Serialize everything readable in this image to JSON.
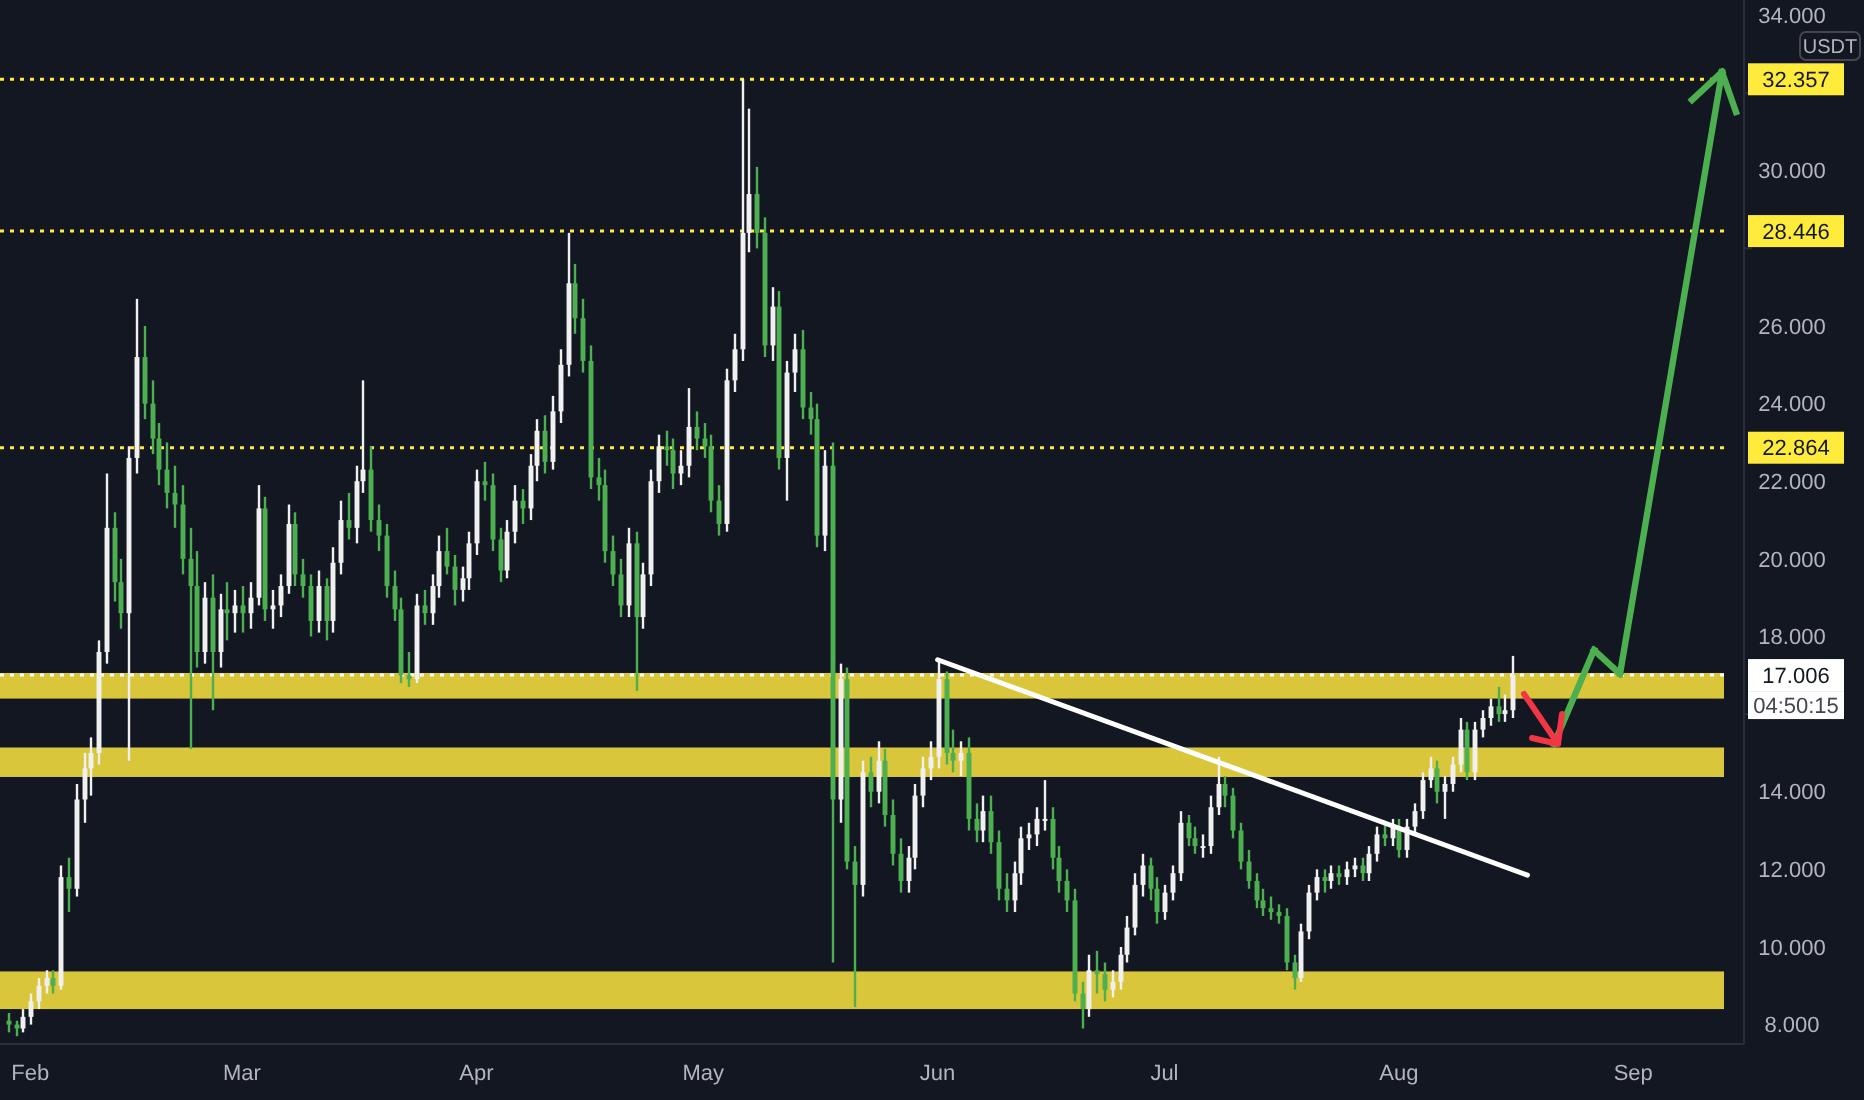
{
  "chart_data": {
    "type": "candlestick",
    "ylabel": "USDT",
    "colors": [
      "#4caf50",
      "#4caf50",
      "#f0f0f0",
      "#f0f0f0",
      "#f0f0f0",
      "#f0f0f0",
      "#4caf50",
      "#f0f0f0",
      "#4caf50",
      "#f0f0f0",
      "#f0f0f0",
      "#f0f0f0",
      "#f0f0f0",
      "#f0f0f0",
      "#4caf50",
      "#4caf50",
      "#f0f0f0",
      "#f0f0f0",
      "#4caf50",
      "#4caf50",
      "#4caf50",
      "#4caf50",
      "#4caf50",
      "#4caf50",
      "#4caf50",
      "#4caf50",
      "#f0f0f0",
      "#4caf50",
      "#f0f0f0",
      "#4caf50",
      "#f0f0f0",
      "#4caf50",
      "#f0f0f0",
      "#f0f0f0",
      "#4caf50",
      "#f0f0f0",
      "#f0f0f0",
      "#f0f0f0",
      "#4caf50",
      "#4caf50",
      "#4caf50",
      "#f0f0f0",
      "#4caf50",
      "#f0f0f0",
      "#f0f0f0",
      "#4caf50",
      "#f0f0f0",
      "#f0f0f0",
      "#4caf50",
      "#4caf50",
      "#4caf50",
      "#4caf50",
      "#4caf50",
      "#4caf50",
      "#f0f0f0",
      "#4caf50",
      "#f0f0f0",
      "#f0f0f0",
      "#4caf50",
      "#4caf50",
      "#f0f0f0",
      "#f0f0f0",
      "#f0f0f0",
      "#4caf50",
      "#4caf50",
      "#4caf50",
      "#f0f0f0",
      "#f0f0f0",
      "#4caf50",
      "#f0f0f0",
      "#f0f0f0",
      "#4caf50",
      "#f0f0f0",
      "#f0f0f0",
      "#f0f0f0",
      "#4caf50",
      "#4caf50",
      "#4caf50",
      "#4caf50",
      "#4caf50",
      "#4caf50",
      "#4caf50",
      "#f0f0f0",
      "#4caf50",
      "#f0f0f0",
      "#f0f0f0",
      "#f0f0f0",
      "#4caf50",
      "#4caf50",
      "#f0f0f0",
      "#f0f0f0",
      "#4caf50",
      "#4caf50",
      "#4caf50",
      "#4caf50",
      "#f0f0f0",
      "#f0f0f0",
      "#f0f0f0",
      "#f0f0f0",
      "#4caf50",
      "#4caf50",
      "#f0f0f0",
      "#4caf50",
      "#f0f0f0",
      "#f0f0f0",
      "#4caf50",
      "#4caf50",
      "#4caf50",
      "#f0f0f0",
      "#4caf50",
      "#f0f0f0",
      "#4caf50",
      "#4caf50",
      "#f0f0f0",
      "#4caf50",
      "#f0f0f0",
      "#4caf50",
      "#4caf50",
      "#4caf50",
      "#f0f0f0",
      "#f0f0f0",
      "#f0f0f0",
      "#f0f0f0",
      "#f0f0f0",
      "#4caf50",
      "#4caf50",
      "#f0f0f0",
      "#4caf50",
      "#4caf50",
      "#f0f0f0",
      "#4caf50",
      "#4caf50",
      "#4caf50",
      "#f0f0f0",
      "#f0f0f0",
      "#f0f0f0",
      "#f0f0f0",
      "#f0f0f0",
      "#4caf50",
      "#4caf50",
      "#4caf50",
      "#4caf50",
      "#4caf50",
      "#f0f0f0",
      "#4caf50",
      "#4caf50",
      "#f0f0f0",
      "#f0f0f0",
      "#f0f0f0",
      "#f0f0f0",
      "#f0f0f0",
      "#4caf50",
      "#4caf50",
      "#f0f0f0",
      "#f0f0f0",
      "#f0f0f0",
      "#4caf50",
      "#4caf50",
      "#f0f0f0",
      "#f0f0f0",
      "#f0f0f0",
      "#4caf50",
      "#4caf50",
      "#4caf50",
      "#4caf50",
      "#4caf50",
      "#4caf50",
      "#4caf50",
      "#4caf50",
      "#4caf50",
      "#4caf50",
      "#f0f0f0",
      "#f0f0f0",
      "#f0f0f0",
      "#4caf50",
      "#f0f0f0",
      "#4caf50",
      "#f0f0f0",
      "#f0f0f0",
      "#4caf50",
      "#f0f0f0",
      "#f0f0f0",
      "#4caf50",
      "#f0f0f0",
      "#4caf50",
      "#f0f0f0",
      "#f0f0f0",
      "#f0f0f0",
      "#f0f0f0",
      "#4caf50",
      "#f0f0f0",
      "#f0f0f0",
      "#f0f0f0",
      "#4caf50",
      "#f0f0f0",
      "#f0f0f0",
      "#f0f0f0",
      "#4caf50",
      "#f0f0f0",
      "#f0f0f0"
    ],
    "x": [
      "--01-29",
      "--01-30",
      "--01-31",
      "--02-01",
      "--02-02",
      "--02-03",
      "--02-04",
      "--02-05",
      "--02-06",
      "--02-07",
      "--02-08",
      "--02-09",
      "--02-10",
      "--02-11",
      "--02-12",
      "--02-13",
      "--02-14",
      "--02-15",
      "--02-16",
      "--02-17",
      "--02-18",
      "--02-19",
      "--02-20",
      "--02-21",
      "--02-22",
      "--02-23",
      "--02-24",
      "--02-25",
      "--02-26",
      "--02-27",
      "--02-28",
      "--03-01",
      "--03-02",
      "--03-03",
      "--03-04",
      "--03-05",
      "--03-06",
      "--03-07",
      "--03-08",
      "--03-09",
      "--03-10",
      "--03-11",
      "--03-12",
      "--03-13",
      "--03-14",
      "--03-15",
      "--03-16",
      "--03-17",
      "--03-18",
      "--03-19",
      "--03-20",
      "--03-21",
      "--03-22",
      "--03-23",
      "--03-24",
      "--03-25",
      "--03-26",
      "--03-27",
      "--03-28",
      "--03-29",
      "--03-30",
      "--03-31",
      "--04-01",
      "--04-02",
      "--04-03",
      "--04-04",
      "--04-05",
      "--04-06",
      "--04-07",
      "--04-08",
      "--04-09",
      "--04-10",
      "--04-11",
      "--04-12",
      "--04-13",
      "--04-14",
      "--04-15",
      "--04-16",
      "--04-17",
      "--04-18",
      "--04-19",
      "--04-20",
      "--04-21",
      "--04-22",
      "--04-23",
      "--04-24",
      "--04-25",
      "--04-26",
      "--04-27",
      "--04-28",
      "--04-29",
      "--04-30",
      "--05-01",
      "--05-02",
      "--05-03",
      "--05-04",
      "--05-05",
      "--05-06",
      "--05-07",
      "--05-08",
      "--05-09",
      "--05-10",
      "--05-11",
      "--05-12",
      "--05-13",
      "--05-14",
      "--05-15",
      "--05-16",
      "--05-17",
      "--05-18",
      "--05-19",
      "--05-20",
      "--05-21",
      "--05-22",
      "--05-23",
      "--05-24",
      "--05-25",
      "--05-26",
      "--05-27",
      "--05-28",
      "--05-29",
      "--05-30",
      "--05-31",
      "--06-01",
      "--06-02",
      "--06-03",
      "--06-04",
      "--06-05",
      "--06-06",
      "--06-07",
      "--06-08",
      "--06-09",
      "--06-10",
      "--06-11",
      "--06-12",
      "--06-13",
      "--06-14",
      "--06-15",
      "--06-16",
      "--06-17",
      "--06-18",
      "--06-19",
      "--06-20",
      "--06-21",
      "--06-22",
      "--06-23",
      "--06-24",
      "--06-25",
      "--06-26",
      "--06-27",
      "--06-28",
      "--06-29",
      "--06-30",
      "--07-01",
      "--07-02",
      "--07-03",
      "--07-04",
      "--07-05",
      "--07-06",
      "--07-07",
      "--07-08",
      "--07-09",
      "--07-10",
      "--07-11",
      "--07-12",
      "--07-13",
      "--07-14",
      "--07-15",
      "--07-16",
      "--07-17",
      "--07-18",
      "--07-19",
      "--07-20",
      "--07-21",
      "--07-22",
      "--07-23",
      "--07-24",
      "--07-25",
      "--07-26",
      "--07-27",
      "--07-28",
      "--07-29",
      "--07-30",
      "--07-31",
      "--08-01",
      "--08-02",
      "--08-03",
      "--08-04",
      "--08-05",
      "--08-06",
      "--08-07",
      "--08-08",
      "--08-09",
      "--08-10",
      "--08-11",
      "--08-12",
      "--08-13",
      "--08-14",
      "--08-15",
      "--08-16"
    ],
    "ohlc": [
      [
        8.1,
        8.3,
        7.8,
        8.0
      ],
      [
        8.0,
        8.1,
        7.7,
        7.9
      ],
      [
        7.9,
        8.4,
        7.8,
        8.2
      ],
      [
        8.2,
        8.8,
        8.0,
        8.6
      ],
      [
        8.6,
        9.2,
        8.4,
        9.0
      ],
      [
        9.0,
        9.4,
        8.8,
        9.2
      ],
      [
        9.2,
        9.4,
        8.8,
        9.0
      ],
      [
        9.0,
        12.1,
        8.9,
        11.8
      ],
      [
        11.8,
        12.3,
        10.9,
        11.5
      ],
      [
        11.5,
        14.2,
        11.3,
        13.8
      ],
      [
        13.8,
        15.0,
        13.2,
        14.6
      ],
      [
        14.6,
        15.4,
        13.9,
        15.0
      ],
      [
        15.0,
        17.9,
        14.7,
        17.6
      ],
      [
        17.6,
        22.2,
        17.3,
        20.8
      ],
      [
        20.8,
        21.2,
        18.9,
        19.4
      ],
      [
        19.4,
        20.0,
        18.2,
        18.6
      ],
      [
        18.6,
        22.9,
        14.8,
        22.6
      ],
      [
        22.6,
        26.7,
        22.2,
        25.2
      ],
      [
        25.2,
        26.0,
        23.6,
        24.0
      ],
      [
        24.0,
        24.6,
        22.7,
        23.1
      ],
      [
        23.1,
        23.5,
        21.9,
        22.3
      ],
      [
        22.3,
        23.0,
        21.3,
        21.7
      ],
      [
        21.7,
        22.4,
        20.8,
        21.4
      ],
      [
        21.4,
        21.9,
        19.6,
        20.0
      ],
      [
        20.0,
        20.8,
        15.1,
        19.3
      ],
      [
        19.3,
        20.2,
        17.2,
        17.6
      ],
      [
        17.6,
        19.4,
        17.3,
        19.0
      ],
      [
        19.0,
        19.6,
        16.1,
        17.6
      ],
      [
        17.6,
        19.1,
        17.2,
        18.7
      ],
      [
        18.7,
        19.4,
        17.9,
        18.6
      ],
      [
        18.6,
        19.2,
        18.1,
        18.8
      ],
      [
        18.8,
        19.3,
        18.1,
        18.6
      ],
      [
        18.6,
        19.4,
        18.2,
        19.0
      ],
      [
        19.0,
        21.9,
        18.8,
        21.3
      ],
      [
        21.3,
        21.6,
        18.4,
        18.7
      ],
      [
        18.7,
        19.2,
        18.2,
        18.8
      ],
      [
        18.8,
        19.6,
        18.5,
        19.3
      ],
      [
        19.3,
        21.4,
        19.1,
        20.9
      ],
      [
        20.9,
        21.2,
        19.3,
        19.6
      ],
      [
        19.6,
        20.0,
        19.0,
        19.3
      ],
      [
        19.3,
        19.6,
        18.0,
        18.4
      ],
      [
        18.4,
        19.7,
        18.1,
        19.3
      ],
      [
        19.3,
        19.5,
        17.9,
        18.4
      ],
      [
        18.4,
        20.3,
        18.1,
        19.9
      ],
      [
        19.9,
        21.5,
        19.6,
        21.0
      ],
      [
        21.0,
        21.7,
        20.5,
        20.8
      ],
      [
        20.8,
        22.4,
        20.4,
        22.0
      ],
      [
        22.0,
        24.6,
        21.7,
        22.3
      ],
      [
        22.3,
        22.9,
        20.7,
        21.0
      ],
      [
        21.0,
        21.4,
        20.2,
        20.6
      ],
      [
        20.6,
        20.9,
        19.0,
        19.3
      ],
      [
        19.3,
        19.7,
        18.4,
        18.7
      ],
      [
        18.7,
        19.0,
        16.8,
        17.0
      ],
      [
        17.0,
        17.6,
        16.7,
        16.9
      ],
      [
        16.9,
        19.1,
        16.8,
        18.8
      ],
      [
        18.8,
        19.2,
        18.3,
        18.6
      ],
      [
        18.6,
        19.6,
        18.3,
        19.3
      ],
      [
        19.3,
        20.6,
        19.0,
        20.2
      ],
      [
        20.2,
        20.8,
        19.6,
        19.8
      ],
      [
        19.8,
        20.1,
        18.8,
        19.2
      ],
      [
        19.2,
        19.8,
        18.9,
        19.5
      ],
      [
        19.5,
        20.7,
        19.2,
        20.4
      ],
      [
        20.4,
        22.3,
        20.1,
        22.0
      ],
      [
        22.0,
        22.5,
        21.5,
        21.9
      ],
      [
        21.9,
        22.2,
        20.2,
        20.5
      ],
      [
        20.5,
        20.8,
        19.4,
        19.7
      ],
      [
        19.7,
        21.0,
        19.5,
        20.7
      ],
      [
        20.7,
        21.9,
        20.4,
        21.5
      ],
      [
        21.5,
        21.8,
        20.9,
        21.3
      ],
      [
        21.3,
        22.7,
        21.0,
        22.4
      ],
      [
        22.4,
        23.6,
        22.0,
        23.3
      ],
      [
        23.3,
        23.7,
        22.2,
        22.5
      ],
      [
        22.5,
        24.2,
        22.3,
        23.8
      ],
      [
        23.8,
        25.4,
        23.5,
        25.0
      ],
      [
        25.0,
        28.4,
        24.7,
        27.1
      ],
      [
        27.1,
        27.6,
        25.8,
        26.2
      ],
      [
        26.2,
        26.7,
        24.8,
        25.1
      ],
      [
        25.1,
        25.5,
        21.8,
        22.1
      ],
      [
        22.1,
        22.6,
        21.5,
        21.9
      ],
      [
        21.9,
        22.3,
        19.9,
        20.2
      ],
      [
        20.2,
        20.6,
        19.3,
        19.6
      ],
      [
        19.6,
        20.0,
        18.5,
        18.8
      ],
      [
        18.8,
        20.8,
        18.5,
        20.4
      ],
      [
        20.4,
        20.7,
        16.6,
        18.5
      ],
      [
        18.5,
        19.9,
        18.2,
        19.6
      ],
      [
        19.6,
        22.3,
        19.3,
        22.0
      ],
      [
        22.0,
        23.2,
        21.7,
        22.9
      ],
      [
        22.9,
        23.3,
        22.4,
        22.8
      ],
      [
        22.8,
        23.1,
        21.8,
        22.2
      ],
      [
        22.2,
        22.8,
        21.9,
        22.4
      ],
      [
        22.4,
        24.4,
        22.1,
        23.4
      ],
      [
        23.4,
        23.8,
        22.8,
        23.1
      ],
      [
        23.1,
        23.5,
        22.6,
        22.9
      ],
      [
        22.9,
        23.2,
        21.2,
        21.5
      ],
      [
        21.5,
        21.9,
        20.6,
        20.9
      ],
      [
        20.9,
        24.9,
        20.7,
        24.6
      ],
      [
        24.6,
        25.8,
        24.3,
        25.4
      ],
      [
        25.4,
        32.36,
        25.1,
        28.4
      ],
      [
        28.4,
        31.6,
        27.9,
        29.4
      ],
      [
        29.4,
        30.1,
        28.0,
        28.4
      ],
      [
        28.4,
        28.8,
        25.2,
        25.5
      ],
      [
        25.5,
        27.0,
        25.1,
        26.5
      ],
      [
        26.5,
        26.9,
        22.3,
        22.6
      ],
      [
        22.6,
        25.1,
        21.5,
        24.8
      ],
      [
        24.8,
        25.8,
        24.3,
        25.4
      ],
      [
        25.4,
        25.9,
        23.6,
        23.9
      ],
      [
        23.9,
        24.3,
        23.2,
        23.6
      ],
      [
        23.6,
        24.0,
        20.3,
        20.6
      ],
      [
        20.6,
        22.8,
        20.2,
        22.4
      ],
      [
        22.4,
        23.0,
        9.6,
        13.8
      ],
      [
        13.8,
        17.3,
        13.2,
        16.9
      ],
      [
        16.9,
        17.2,
        12.0,
        12.2
      ],
      [
        12.2,
        12.6,
        8.45,
        11.6
      ],
      [
        11.6,
        14.8,
        11.3,
        14.5
      ],
      [
        14.5,
        14.9,
        13.6,
        14.0
      ],
      [
        14.0,
        15.3,
        13.7,
        14.8
      ],
      [
        14.8,
        15.1,
        13.1,
        13.4
      ],
      [
        13.4,
        13.8,
        12.1,
        12.4
      ],
      [
        12.4,
        12.8,
        11.4,
        11.7
      ],
      [
        11.7,
        12.6,
        11.4,
        12.3
      ],
      [
        12.3,
        14.2,
        12.0,
        13.9
      ],
      [
        13.9,
        14.9,
        13.6,
        14.6
      ],
      [
        14.6,
        15.3,
        14.3,
        14.9
      ],
      [
        14.9,
        17.4,
        14.6,
        16.9
      ],
      [
        16.9,
        17.1,
        14.7,
        15.0
      ],
      [
        15.0,
        15.6,
        14.5,
        14.8
      ],
      [
        14.8,
        15.3,
        14.4,
        15.0
      ],
      [
        15.0,
        15.4,
        13.0,
        13.3
      ],
      [
        13.3,
        13.7,
        12.7,
        13.0
      ],
      [
        13.0,
        13.9,
        12.7,
        13.5
      ],
      [
        13.5,
        13.9,
        12.4,
        12.7
      ],
      [
        12.7,
        13.0,
        11.2,
        11.5
      ],
      [
        11.5,
        11.9,
        10.9,
        11.2
      ],
      [
        11.2,
        12.2,
        10.9,
        11.9
      ],
      [
        11.9,
        13.1,
        11.6,
        12.8
      ],
      [
        12.8,
        13.2,
        12.5,
        12.9
      ],
      [
        12.9,
        13.6,
        12.6,
        13.3
      ],
      [
        13.3,
        14.3,
        13.0,
        13.3
      ],
      [
        13.3,
        13.6,
        12.0,
        12.3
      ],
      [
        12.3,
        12.6,
        11.4,
        11.7
      ],
      [
        11.7,
        12.0,
        10.9,
        11.2
      ],
      [
        11.2,
        11.5,
        8.6,
        8.8
      ],
      [
        8.8,
        9.1,
        7.9,
        8.4
      ],
      [
        8.4,
        9.8,
        8.2,
        9.4
      ],
      [
        9.4,
        9.9,
        8.8,
        9.3
      ],
      [
        9.3,
        9.6,
        8.6,
        8.9
      ],
      [
        8.9,
        9.4,
        8.7,
        9.1
      ],
      [
        9.1,
        10.0,
        8.9,
        9.8
      ],
      [
        9.8,
        10.8,
        9.6,
        10.5
      ],
      [
        10.5,
        11.9,
        10.3,
        11.6
      ],
      [
        11.6,
        12.4,
        11.3,
        12.1
      ],
      [
        12.1,
        12.3,
        11.2,
        11.5
      ],
      [
        11.5,
        11.8,
        10.6,
        10.9
      ],
      [
        10.9,
        11.6,
        10.7,
        11.4
      ],
      [
        11.4,
        12.1,
        11.2,
        11.9
      ],
      [
        11.9,
        13.5,
        11.7,
        13.2
      ],
      [
        13.2,
        13.4,
        12.6,
        12.8
      ],
      [
        12.8,
        13.1,
        12.4,
        12.6
      ],
      [
        12.6,
        12.9,
        12.3,
        12.6
      ],
      [
        12.6,
        13.9,
        12.4,
        13.6
      ],
      [
        13.6,
        14.9,
        13.4,
        14.2
      ],
      [
        14.2,
        14.4,
        13.6,
        13.9
      ],
      [
        13.9,
        14.1,
        12.8,
        13.0
      ],
      [
        13.0,
        13.2,
        12.0,
        12.2
      ],
      [
        12.2,
        12.5,
        11.5,
        11.7
      ],
      [
        11.7,
        11.9,
        11.0,
        11.2
      ],
      [
        11.2,
        11.5,
        10.8,
        11.0
      ],
      [
        11.0,
        11.3,
        10.7,
        10.9
      ],
      [
        10.9,
        11.1,
        10.6,
        10.8
      ],
      [
        10.8,
        11.0,
        9.4,
        9.6
      ],
      [
        9.6,
        9.8,
        8.9,
        9.2
      ],
      [
        9.2,
        10.6,
        9.1,
        10.4
      ],
      [
        10.4,
        11.6,
        10.2,
        11.4
      ],
      [
        11.4,
        12.0,
        11.2,
        11.8
      ],
      [
        11.8,
        12.0,
        11.4,
        11.7
      ],
      [
        11.7,
        12.1,
        11.5,
        11.9
      ],
      [
        11.9,
        12.1,
        11.6,
        11.8
      ],
      [
        11.8,
        12.2,
        11.6,
        12.0
      ],
      [
        12.0,
        12.3,
        11.8,
        12.1
      ],
      [
        12.1,
        12.3,
        11.7,
        11.9
      ],
      [
        11.9,
        12.6,
        11.7,
        12.4
      ],
      [
        12.4,
        13.1,
        12.2,
        12.9
      ],
      [
        12.9,
        13.2,
        12.6,
        12.8
      ],
      [
        12.8,
        13.3,
        12.6,
        13.1
      ],
      [
        13.1,
        13.3,
        12.3,
        12.5
      ],
      [
        12.5,
        13.3,
        12.3,
        13.1
      ],
      [
        13.1,
        13.7,
        12.9,
        13.5
      ],
      [
        13.5,
        14.5,
        13.3,
        14.3
      ],
      [
        14.3,
        14.9,
        14.1,
        14.6
      ],
      [
        14.6,
        14.8,
        13.7,
        14.0
      ],
      [
        14.0,
        14.4,
        13.3,
        14.2
      ],
      [
        14.2,
        14.9,
        14.0,
        14.7
      ],
      [
        14.7,
        15.9,
        14.5,
        15.6
      ],
      [
        15.6,
        15.8,
        14.3,
        14.5
      ],
      [
        14.5,
        15.8,
        14.3,
        15.6
      ],
      [
        15.6,
        16.1,
        15.4,
        15.9
      ],
      [
        15.9,
        16.4,
        15.7,
        16.2
      ],
      [
        16.2,
        16.7,
        15.8,
        16.0
      ],
      [
        16.0,
        16.5,
        15.8,
        16.1
      ],
      [
        16.1,
        17.5,
        15.9,
        17.0
      ]
    ],
    "series": [
      {
        "type": "line",
        "color": "#ffffff",
        "x": [
          "--06-01",
          "--08-18"
        ],
        "values": [
          17.4,
          11.85
        ]
      }
    ],
    "xlim": [
      "--01-28",
      "--09-13"
    ],
    "xticks": [
      {
        "value": "--02-01",
        "label": "Feb"
      },
      {
        "value": "--03-01",
        "label": "Mar"
      },
      {
        "value": "--04-01",
        "label": "Apr"
      },
      {
        "value": "--05-01",
        "label": "May"
      },
      {
        "value": "--06-01",
        "label": "Jun"
      },
      {
        "value": "--07-01",
        "label": "Jul"
      },
      {
        "value": "--08-01",
        "label": "Aug"
      },
      {
        "value": "--09-01",
        "label": "Sep"
      }
    ],
    "ylim": [
      7.5,
      34.4
    ],
    "yticks": [
      {
        "value": 8,
        "label": "8.000"
      },
      {
        "value": 10,
        "label": "10.000"
      },
      {
        "value": 12,
        "label": "12.000"
      },
      {
        "value": 14,
        "label": "14.000"
      },
      {
        "value": 16,
        "label": null
      },
      {
        "value": 18,
        "label": "18.000"
      },
      {
        "value": 20,
        "label": "20.000"
      },
      {
        "value": 22,
        "label": "22.000"
      },
      {
        "value": 24,
        "label": "24.000"
      },
      {
        "value": 26,
        "label": "26.000"
      },
      {
        "value": 28,
        "label": null
      },
      {
        "value": 30,
        "label": "30.000"
      },
      {
        "value": 32,
        "label": null
      },
      {
        "value": 34,
        "label": "34.000"
      }
    ],
    "bands": [
      {
        "axis": "y",
        "from": 16.4,
        "to": 17.06,
        "color": "#d9c63a"
      },
      {
        "axis": "y",
        "from": 14.38,
        "to": 15.14,
        "color": "#d9c63a"
      },
      {
        "axis": "y",
        "from": 8.4,
        "to": 9.37,
        "color": "#d9c63a"
      }
    ],
    "ref_lines": [
      {
        "axis": "y",
        "value": 32.357,
        "label": "32.357",
        "color": "#ffeb3b",
        "line_style": "dotted"
      },
      {
        "axis": "y",
        "value": 28.446,
        "label": "28.446",
        "color": "#ffeb3b",
        "line_style": "dotted"
      },
      {
        "axis": "y",
        "value": 22.864,
        "label": "22.864",
        "color": "#ffeb3b",
        "line_style": "dotted"
      },
      {
        "axis": "y",
        "value": 17.006,
        "label": "17.006",
        "color": "#ffffff",
        "line_style": "dotted"
      }
    ],
    "annotations": [
      "04:50:15"
    ]
  }
}
